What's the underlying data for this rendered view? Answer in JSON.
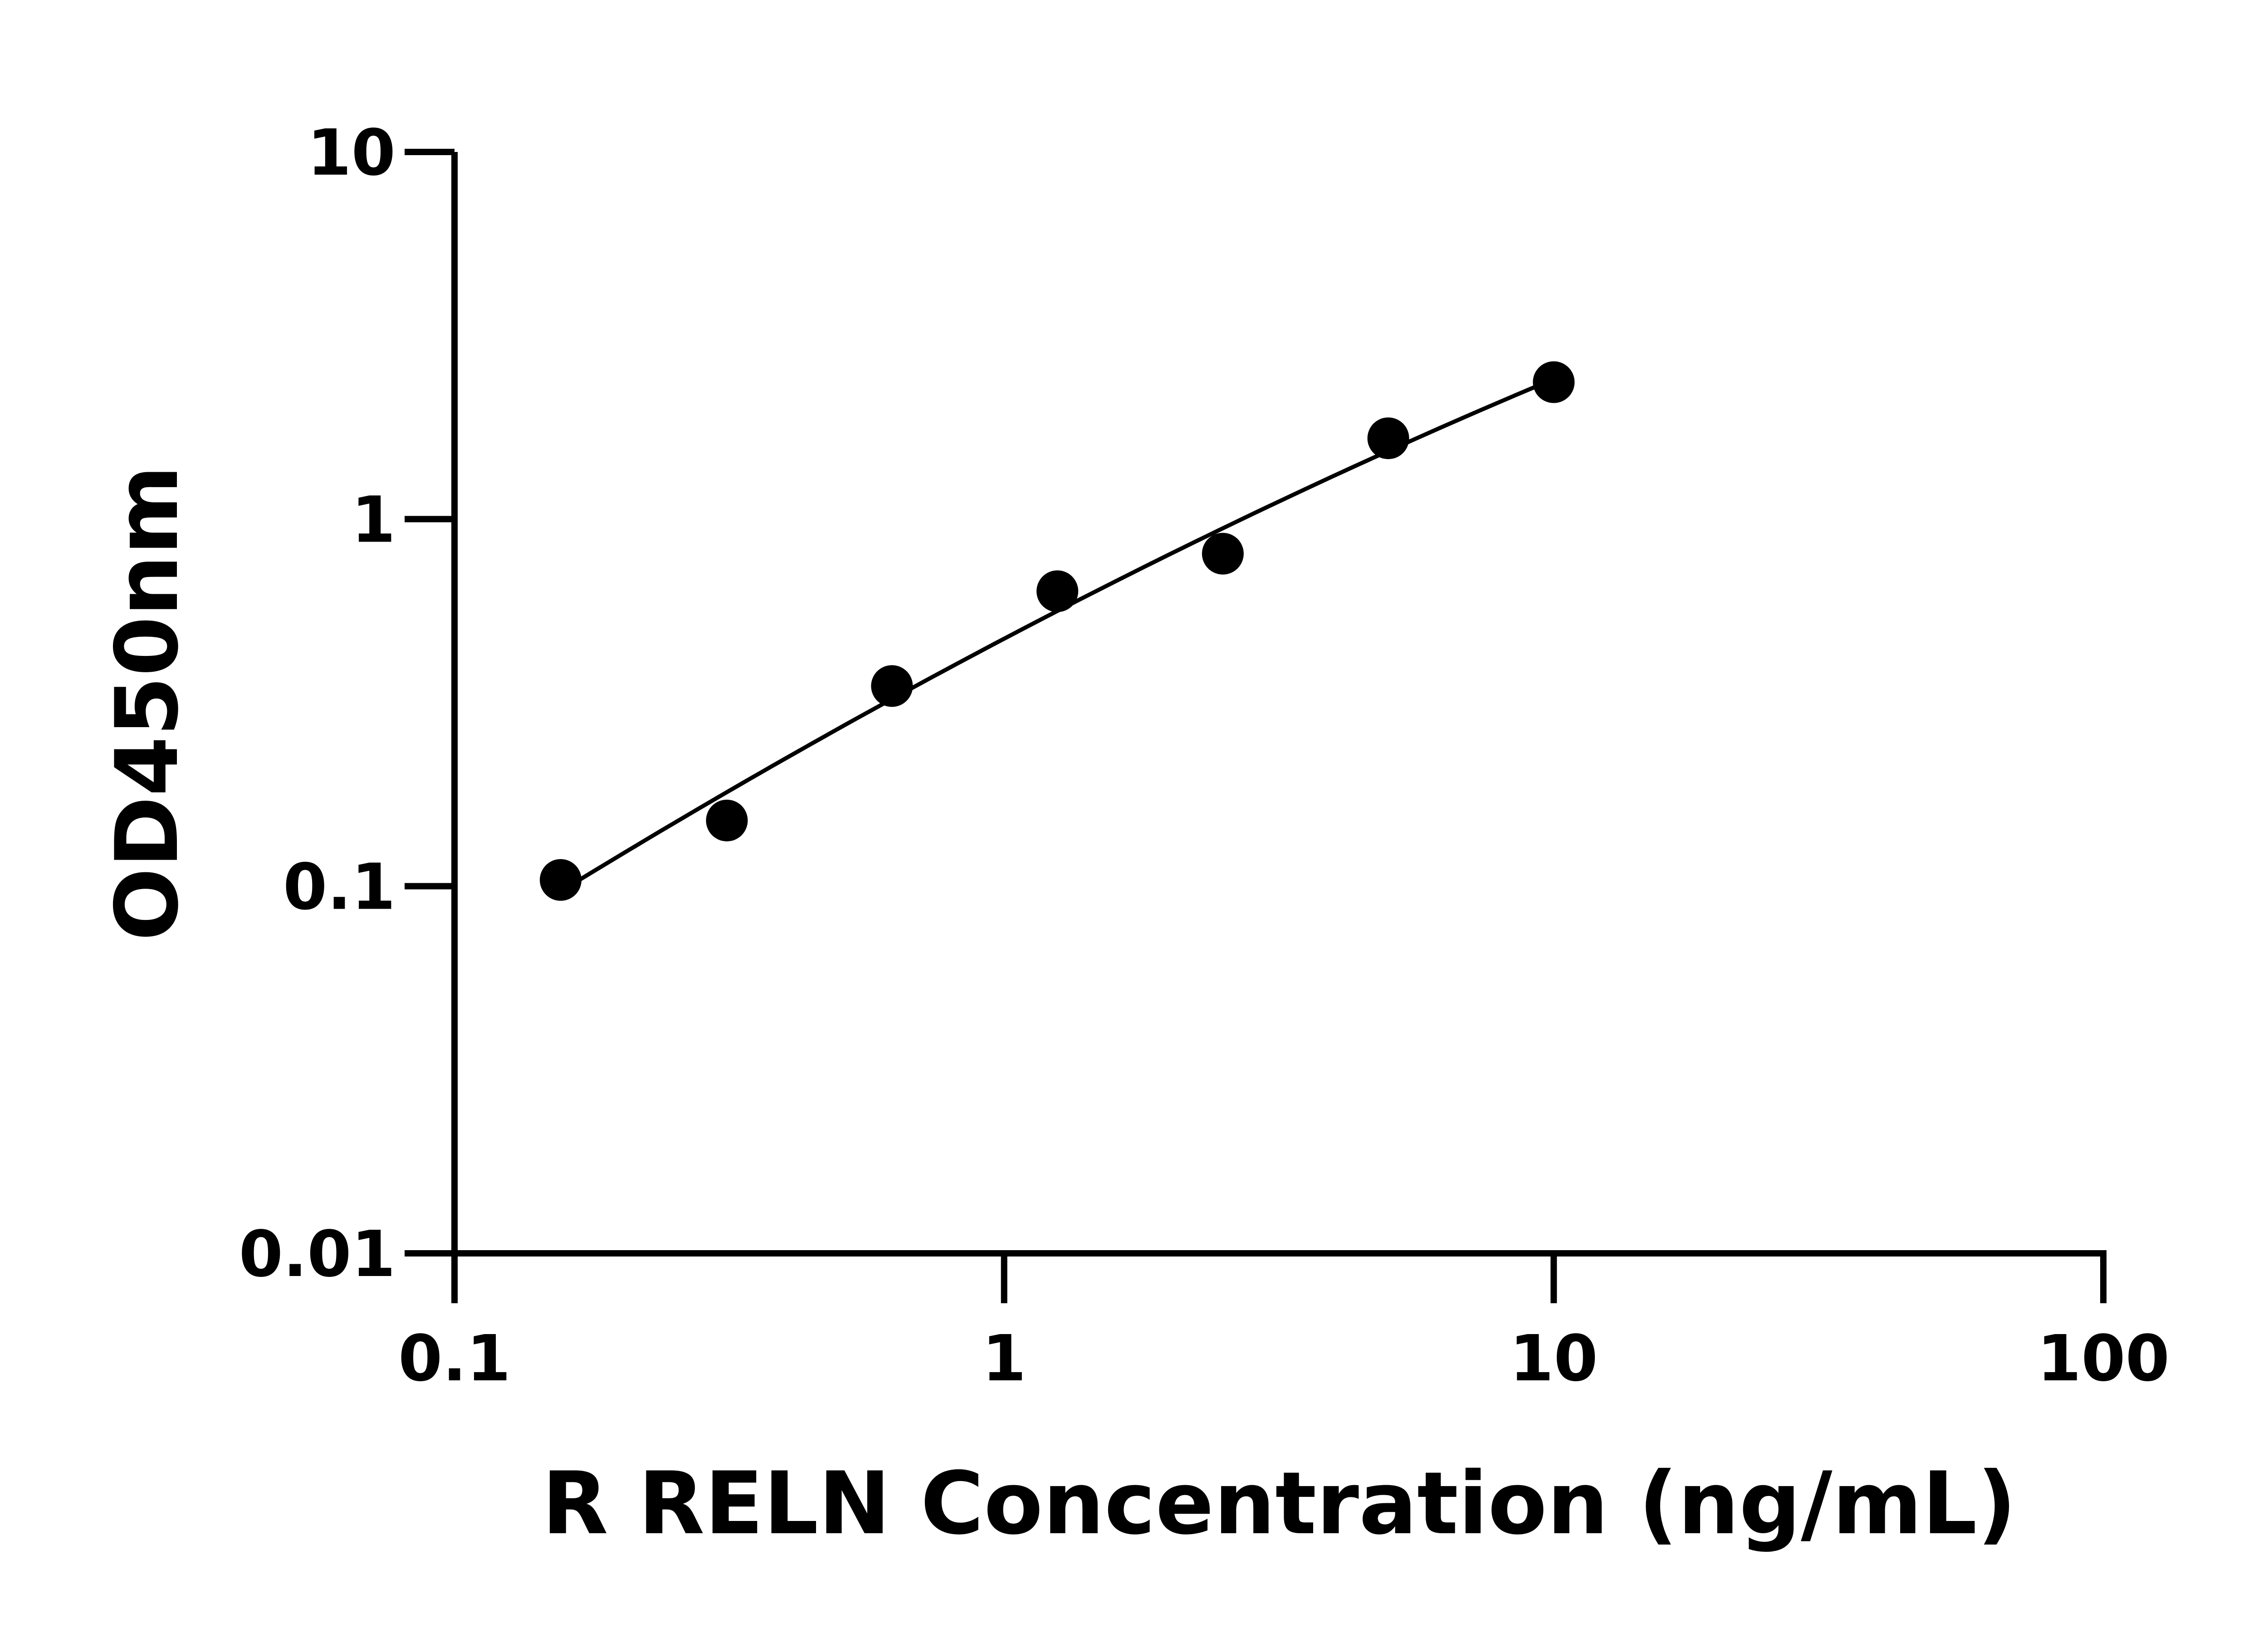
{
  "chart_data": {
    "type": "scatter",
    "title": "",
    "xlabel": "R RELN Concentration (ng/mL)",
    "ylabel": "OD450nm",
    "x_scale": "log",
    "y_scale": "log",
    "xlim": [
      0.1,
      100
    ],
    "ylim": [
      0.01,
      10
    ],
    "x_ticks": [
      "0.1",
      "1",
      "10",
      "100"
    ],
    "y_ticks": [
      "0.01",
      "0.1",
      "1",
      "10"
    ],
    "grid": false,
    "legend": "none",
    "fit_line": true,
    "color": "#000000",
    "series": [
      {
        "x": [
          0.156,
          0.313,
          0.625,
          1.25,
          2.5,
          5,
          10
        ],
        "y": [
          0.104,
          0.151,
          0.351,
          0.636,
          0.805,
          1.66,
          2.36
        ]
      }
    ]
  }
}
